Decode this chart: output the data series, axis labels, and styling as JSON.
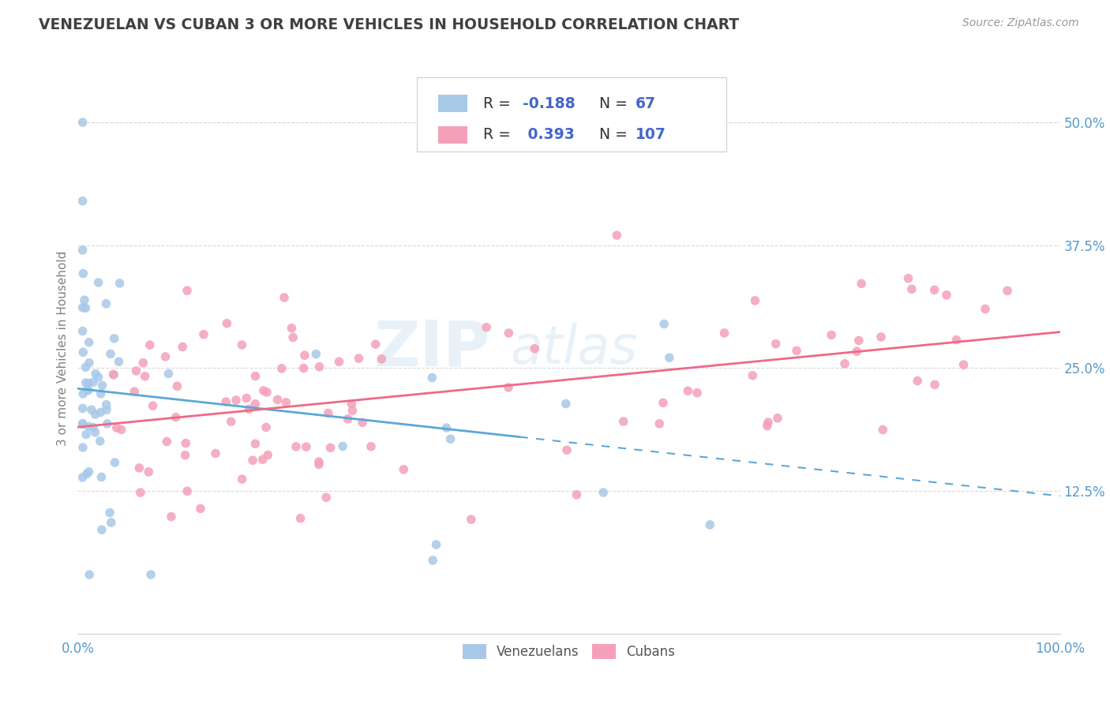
{
  "title": "VENEZUELAN VS CUBAN 3 OR MORE VEHICLES IN HOUSEHOLD CORRELATION CHART",
  "source": "Source: ZipAtlas.com",
  "ylabel": "3 or more Vehicles in Household",
  "xlim": [
    0,
    1.0
  ],
  "ylim": [
    -0.02,
    0.56
  ],
  "ytick_labels": [
    "12.5%",
    "25.0%",
    "37.5%",
    "50.0%"
  ],
  "ytick_values": [
    0.125,
    0.25,
    0.375,
    0.5
  ],
  "legend_r_ven": "-0.188",
  "legend_n_ven": "67",
  "legend_r_cub": "0.393",
  "legend_n_cub": "107",
  "ven_color": "#a8c8e8",
  "cub_color": "#f4a0b8",
  "trend_ven_solid": "#5ba8d8",
  "trend_cub_solid": "#f06888",
  "background_color": "#ffffff",
  "grid_color": "#d8d8d8",
  "legend_text_color": "#4466cc",
  "title_color": "#404040",
  "axis_label_color": "#808080",
  "tick_color": "#5599cc",
  "watermark_color": "#d0e4f0",
  "watermark_alpha": 0.5
}
